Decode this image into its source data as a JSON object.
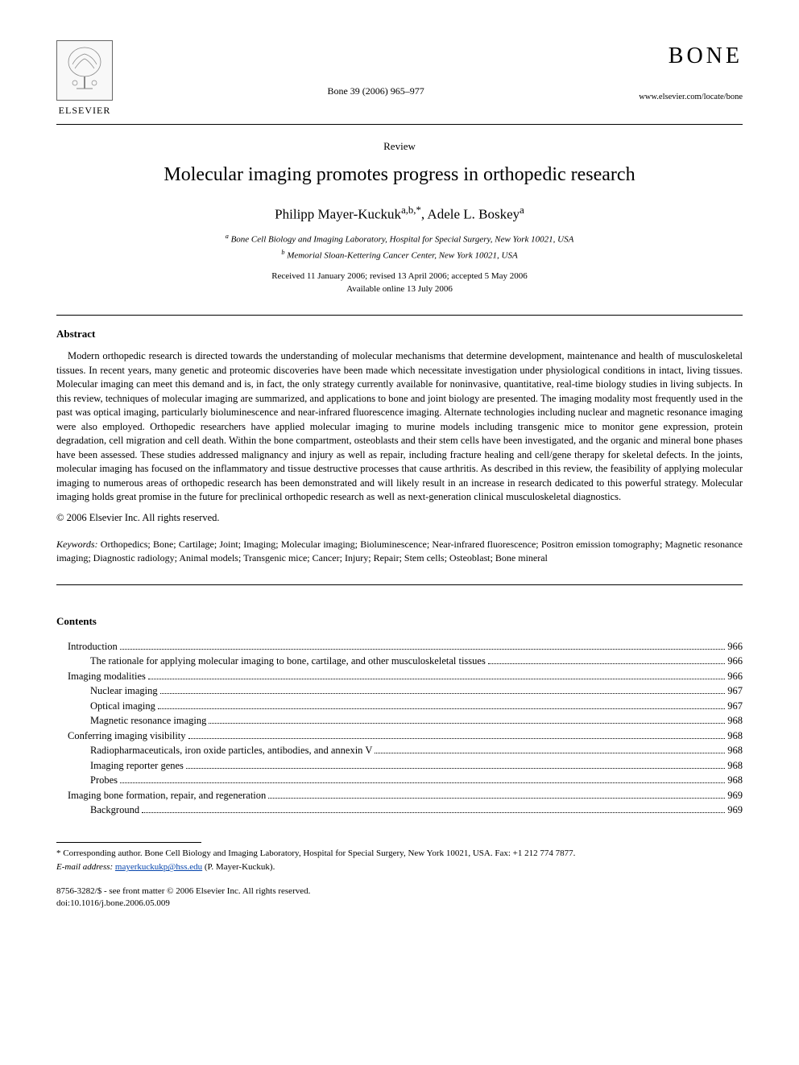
{
  "header": {
    "publisher": "ELSEVIER",
    "citation": "Bone 39 (2006) 965–977",
    "journal_name": "BONE",
    "journal_url": "www.elsevier.com/locate/bone"
  },
  "article": {
    "type_label": "Review",
    "title": "Molecular imaging promotes progress in orthopedic research",
    "authors_html": "Philipp Mayer-Kuckuk",
    "author1_sup": "a,b,",
    "author1_star": "*",
    "author_sep": ", ",
    "author2": "Adele L. Boskey",
    "author2_sup": "a",
    "affiliations": [
      {
        "sup": "a",
        "text": " Bone Cell Biology and Imaging Laboratory, Hospital for Special Surgery, New York 10021, USA"
      },
      {
        "sup": "b",
        "text": " Memorial Sloan-Kettering Cancer Center, New York 10021, USA"
      }
    ],
    "dates_line1": "Received 11 January 2006; revised 13 April 2006; accepted 5 May 2006",
    "dates_line2": "Available online 13 July 2006"
  },
  "abstract": {
    "heading": "Abstract",
    "body": "Modern orthopedic research is directed towards the understanding of molecular mechanisms that determine development, maintenance and health of musculoskeletal tissues. In recent years, many genetic and proteomic discoveries have been made which necessitate investigation under physiological conditions in intact, living tissues. Molecular imaging can meet this demand and is, in fact, the only strategy currently available for noninvasive, quantitative, real-time biology studies in living subjects. In this review, techniques of molecular imaging are summarized, and applications to bone and joint biology are presented. The imaging modality most frequently used in the past was optical imaging, particularly bioluminescence and near-infrared fluorescence imaging. Alternate technologies including nuclear and magnetic resonance imaging were also employed. Orthopedic researchers have applied molecular imaging to murine models including transgenic mice to monitor gene expression, protein degradation, cell migration and cell death. Within the bone compartment, osteoblasts and their stem cells have been investigated, and the organic and mineral bone phases have been assessed. These studies addressed malignancy and injury as well as repair, including fracture healing and cell/gene therapy for skeletal defects. In the joints, molecular imaging has focused on the inflammatory and tissue destructive processes that cause arthritis. As described in this review, the feasibility of applying molecular imaging to numerous areas of orthopedic research has been demonstrated and will likely result in an increase in research dedicated to this powerful strategy. Molecular imaging holds great promise in the future for preclinical orthopedic research as well as next-generation clinical musculoskeletal diagnostics.",
    "copyright": "© 2006 Elsevier Inc. All rights reserved."
  },
  "keywords": {
    "label": "Keywords:",
    "text": " Orthopedics; Bone; Cartilage; Joint; Imaging; Molecular imaging; Bioluminescence; Near-infrared fluorescence; Positron emission tomography; Magnetic resonance imaging; Diagnostic radiology; Animal models; Transgenic mice; Cancer; Injury; Repair; Stem cells; Osteoblast; Bone mineral"
  },
  "contents": {
    "heading": "Contents",
    "items": [
      {
        "level": 0,
        "label": "Introduction",
        "page": "966"
      },
      {
        "level": 1,
        "label": "The rationale for applying molecular imaging to bone, cartilage, and other musculoskeletal tissues",
        "page": "966"
      },
      {
        "level": 0,
        "label": "Imaging modalities",
        "page": "966"
      },
      {
        "level": 1,
        "label": "Nuclear imaging",
        "page": "967"
      },
      {
        "level": 1,
        "label": "Optical imaging",
        "page": "967"
      },
      {
        "level": 1,
        "label": "Magnetic resonance imaging",
        "page": "968"
      },
      {
        "level": 0,
        "label": "Conferring imaging visibility",
        "page": "968"
      },
      {
        "level": 1,
        "label": "Radiopharmaceuticals, iron oxide particles, antibodies, and annexin V",
        "page": "968"
      },
      {
        "level": 1,
        "label": "Imaging reporter genes",
        "page": "968"
      },
      {
        "level": 1,
        "label": "Probes",
        "page": "968"
      },
      {
        "level": 0,
        "label": "Imaging bone formation, repair, and regeneration",
        "page": "969"
      },
      {
        "level": 1,
        "label": "Background",
        "page": "969"
      }
    ]
  },
  "footnotes": {
    "corresponding": " Corresponding author. Bone Cell Biology and Imaging Laboratory, Hospital for Special Surgery, New York 10021, USA. Fax: +1 212 774 7877.",
    "email_label": "E-mail address:",
    "email": "mayerkuckukp@hss.edu",
    "email_tail": " (P. Mayer-Kuckuk)."
  },
  "issn": {
    "line1": "8756-3282/$ - see front matter © 2006 Elsevier Inc. All rights reserved.",
    "line2": "doi:10.1016/j.bone.2006.05.009"
  }
}
